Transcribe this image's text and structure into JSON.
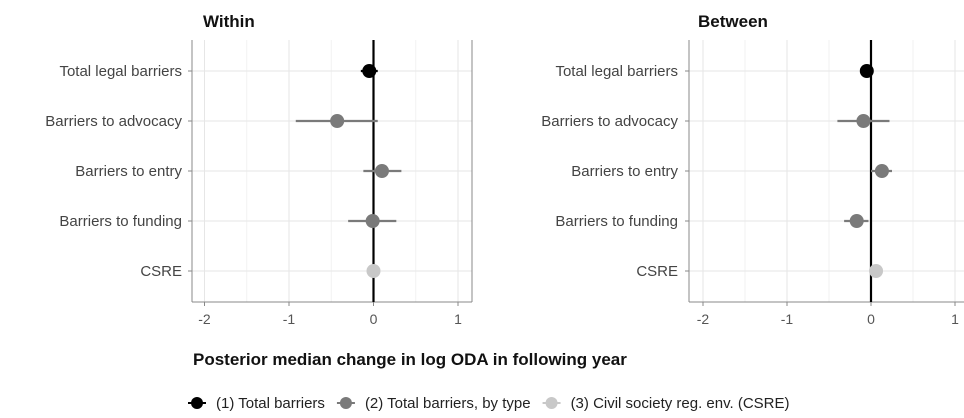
{
  "chart_data": {
    "type": "scatter",
    "subtype": "dot-whisker (point estimate with interval)",
    "xlabel": "Posterior median change in log ODA in following year",
    "xlim": [
      -2.2,
      1.15
    ],
    "xticks": [
      -2,
      -1,
      0,
      1
    ],
    "reference_line_x": 0,
    "grid": true,
    "legend_position": "bottom",
    "categories": [
      "Total legal barriers",
      "Barriers to advocacy",
      "Barriers to entry",
      "Barriers to funding",
      "CSRE"
    ],
    "legend": [
      {
        "label": "(1) Total barriers",
        "color": "#000000"
      },
      {
        "label": "(2) Total barriers, by type",
        "color": "#7a7a7a"
      },
      {
        "label": "(3) Civil society reg. env. (CSRE)",
        "color": "#c8c8c8"
      }
    ],
    "panels": [
      {
        "title": "Within",
        "points": [
          {
            "category": "Total legal barriers",
            "model": 0,
            "estimate": -0.05,
            "lower": -0.15,
            "upper": 0.05
          },
          {
            "category": "Barriers to advocacy",
            "model": 1,
            "estimate": -0.43,
            "lower": -0.92,
            "upper": 0.05
          },
          {
            "category": "Barriers to entry",
            "model": 1,
            "estimate": 0.1,
            "lower": -0.12,
            "upper": 0.33
          },
          {
            "category": "Barriers to funding",
            "model": 1,
            "estimate": -0.01,
            "lower": -0.3,
            "upper": 0.27
          },
          {
            "category": "CSRE",
            "model": 2,
            "estimate": 0.0,
            "lower": -0.06,
            "upper": 0.06
          }
        ]
      },
      {
        "title": "Between",
        "points": [
          {
            "category": "Total legal barriers",
            "model": 0,
            "estimate": -0.05,
            "lower": -0.09,
            "upper": -0.01
          },
          {
            "category": "Barriers to advocacy",
            "model": 1,
            "estimate": -0.09,
            "lower": -0.4,
            "upper": 0.22
          },
          {
            "category": "Barriers to entry",
            "model": 1,
            "estimate": 0.13,
            "lower": 0.0,
            "upper": 0.25
          },
          {
            "category": "Barriers to funding",
            "model": 1,
            "estimate": -0.17,
            "lower": -0.32,
            "upper": -0.03
          },
          {
            "category": "CSRE",
            "model": 2,
            "estimate": 0.06,
            "lower": 0.01,
            "upper": 0.11
          }
        ]
      }
    ]
  }
}
